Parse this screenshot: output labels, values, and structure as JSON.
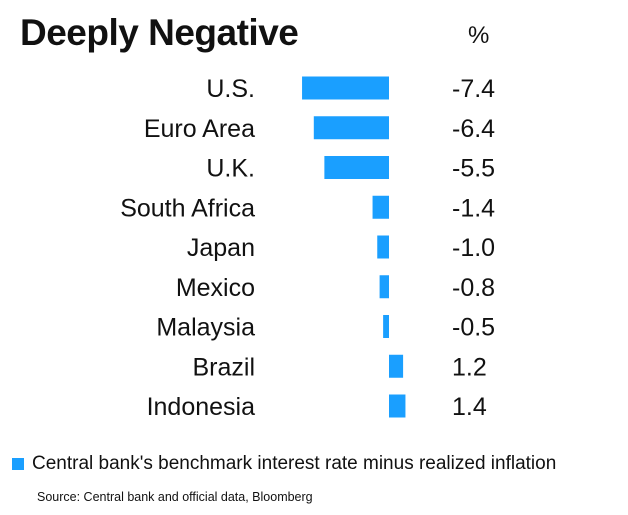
{
  "header": {
    "title": "Deeply Negative",
    "unit": "%"
  },
  "chart_data": {
    "type": "bar",
    "orientation": "horizontal",
    "categories": [
      "U.S.",
      "Euro Area",
      "U.K.",
      "South Africa",
      "Japan",
      "Mexico",
      "Malaysia",
      "Brazil",
      "Indonesia"
    ],
    "values": [
      -7.4,
      -6.4,
      -5.5,
      -1.4,
      -1.0,
      -0.8,
      -0.5,
      1.2,
      1.4
    ],
    "value_labels": [
      "-7.4",
      "-6.4",
      "-5.5",
      "-1.4",
      "-1.0",
      "-0.8",
      "-0.5",
      "1.2",
      "1.4"
    ],
    "series": [
      {
        "name": "Central bank's benchmark interest rate minus realized inflation",
        "color": "#1a9fff"
      }
    ],
    "grid": false,
    "legend_position": "bottom-left"
  },
  "footer": {
    "source": "Source: Central bank and official data, Bloomberg"
  }
}
